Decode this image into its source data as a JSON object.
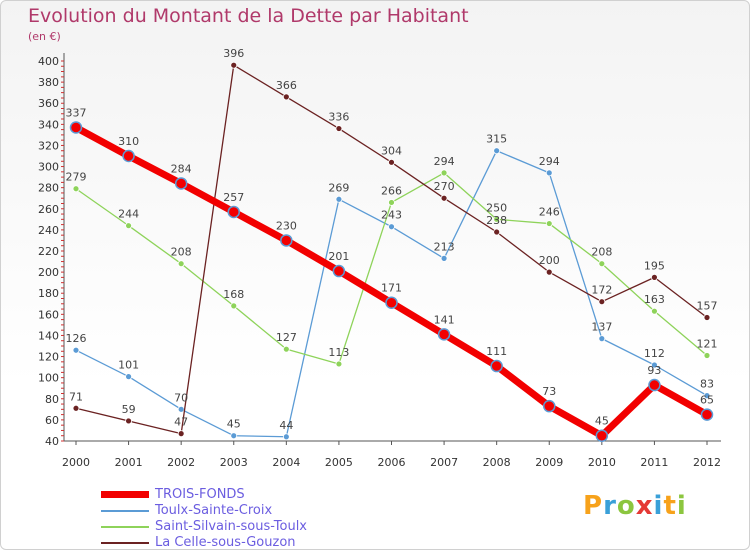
{
  "header": {
    "title": "Evolution du Montant de la Dette par Habitant",
    "unit": "(en €)"
  },
  "brand": {
    "text": "Proxiti",
    "letters": [
      "P",
      "r",
      "o",
      "x",
      "i",
      "t",
      "i"
    ],
    "letter_colors": [
      "#f7a21b",
      "#3aa0d8",
      "#8cc63f",
      "#e53935",
      "#3aa0d8",
      "#f7a21b",
      "#8cc63f"
    ]
  },
  "chart_data": {
    "type": "line",
    "title": "Evolution du Montant de la Dette par Habitant",
    "ylabel": "(en €)",
    "xlabel": "",
    "ylim": [
      40,
      400
    ],
    "yticks": [
      40,
      60,
      80,
      100,
      120,
      140,
      160,
      180,
      200,
      220,
      240,
      260,
      280,
      300,
      320,
      340,
      360,
      380,
      400
    ],
    "grid": false,
    "legend_position": "bottom-left",
    "categories": [
      "2000",
      "2001",
      "2002",
      "2003",
      "2004",
      "2005",
      "2006",
      "2007",
      "2008",
      "2009",
      "2010",
      "2011",
      "2012"
    ],
    "series": [
      {
        "name": "TROIS-FONDS",
        "color": "#f20000",
        "emphasis": true,
        "values": [
          337,
          310,
          284,
          257,
          230,
          201,
          171,
          141,
          111,
          73,
          45,
          93,
          65
        ]
      },
      {
        "name": "Toulx-Sainte-Croix",
        "color": "#5b9bd5",
        "values": [
          126,
          101,
          70,
          45,
          44,
          269,
          243,
          213,
          315,
          294,
          137,
          112,
          83
        ]
      },
      {
        "name": "Saint-Silvain-sous-Toulx",
        "color": "#8ed35a",
        "values": [
          279,
          244,
          208,
          168,
          127,
          113,
          266,
          294,
          250,
          246,
          208,
          163,
          121
        ]
      },
      {
        "name": "La Celle-sous-Gouzon",
        "color": "#6b2222",
        "values": [
          71,
          59,
          47,
          396,
          366,
          336,
          304,
          270,
          238,
          200,
          172,
          195,
          157
        ]
      }
    ]
  }
}
